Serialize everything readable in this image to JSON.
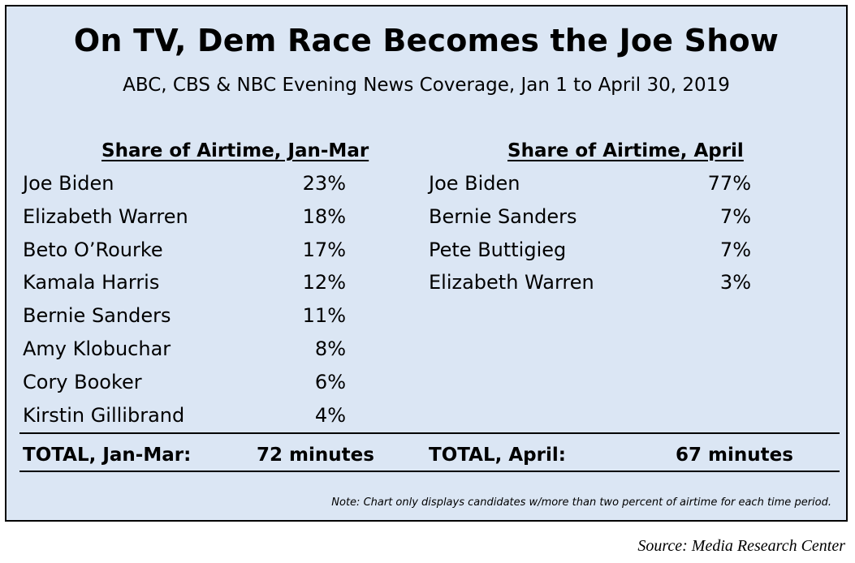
{
  "chart_data": {
    "type": "table",
    "title": "On TV, Dem Race Becomes the Joe Show",
    "subtitle": "ABC, CBS & NBC Evening News Coverage, Jan 1 to April 30, 2019",
    "tables": [
      {
        "header": "Share of Airtime, Jan-Mar",
        "rows": [
          {
            "name": "Joe Biden",
            "share": "23%"
          },
          {
            "name": "Elizabeth Warren",
            "share": "18%"
          },
          {
            "name": "Beto O’Rourke",
            "share": "17%"
          },
          {
            "name": "Kamala Harris",
            "share": "12%"
          },
          {
            "name": "Bernie Sanders",
            "share": "11%"
          },
          {
            "name": "Amy Klobuchar",
            "share": "8%"
          },
          {
            "name": "Cory Booker",
            "share": "6%"
          },
          {
            "name": "Kirstin Gillibrand",
            "share": "4%"
          }
        ],
        "total_label": "TOTAL, Jan-Mar:",
        "total_value": "72 minutes"
      },
      {
        "header": "Share of Airtime, April",
        "rows": [
          {
            "name": "Joe Biden",
            "share": "77%"
          },
          {
            "name": "Bernie Sanders",
            "share": "7%"
          },
          {
            "name": "Pete Buttigieg",
            "share": "7%"
          },
          {
            "name": "Elizabeth Warren",
            "share": "3%"
          }
        ],
        "total_label": "TOTAL, April:",
        "total_value": "67 minutes"
      }
    ],
    "note": "Note: Chart only displays candidates w/more than two percent of airtime for each time period.",
    "source": "Source: Media Research Center",
    "colors": {
      "panel_background": "#dbe6f4",
      "border": "#000000"
    }
  }
}
